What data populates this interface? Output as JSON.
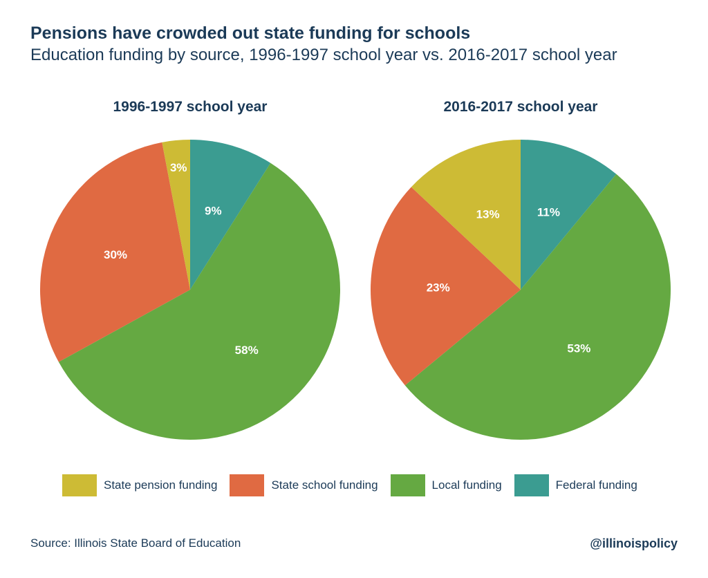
{
  "header": {
    "title": "Pensions have crowded out state funding for schools",
    "subtitle": "Education funding by source, 1996-1997 school year vs. 2016-2017 school year"
  },
  "colors": {
    "state_pension": "#cdbb35",
    "state_school": "#e06a42",
    "local": "#65a942",
    "federal": "#3b9c91"
  },
  "legend": [
    {
      "key": "state_pension",
      "label": "State pension funding"
    },
    {
      "key": "state_school",
      "label": "State school funding"
    },
    {
      "key": "local",
      "label": "Local funding"
    },
    {
      "key": "federal",
      "label": "Federal funding"
    }
  ],
  "chart_data": [
    {
      "type": "pie",
      "title": "1996-1997 school year",
      "slices": [
        {
          "key": "federal",
          "label": "Federal funding",
          "value": 9,
          "display": "9%"
        },
        {
          "key": "local",
          "label": "Local funding",
          "value": 58,
          "display": "58%"
        },
        {
          "key": "state_school",
          "label": "State school funding",
          "value": 30,
          "display": "30%"
        },
        {
          "key": "state_pension",
          "label": "State pension funding",
          "value": 3,
          "display": "3%"
        }
      ]
    },
    {
      "type": "pie",
      "title": "2016-2017 school year",
      "slices": [
        {
          "key": "federal",
          "label": "Federal funding",
          "value": 11,
          "display": "11%"
        },
        {
          "key": "local",
          "label": "Local funding",
          "value": 53,
          "display": "53%"
        },
        {
          "key": "state_school",
          "label": "State school funding",
          "value": 23,
          "display": "23%"
        },
        {
          "key": "state_pension",
          "label": "State pension funding",
          "value": 13,
          "display": "13%"
        }
      ]
    }
  ],
  "footer": {
    "source": "Source: Illinois State Board of Education",
    "handle": "@illinoispolicy"
  }
}
